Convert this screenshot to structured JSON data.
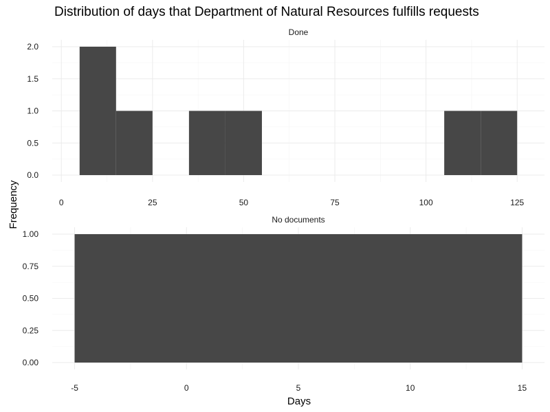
{
  "chart_data": {
    "type": "bar",
    "title": "Distribution of days that Department of Natural Resources fulfills requests",
    "xlabel": "Days",
    "ylabel": "Frequency",
    "grid": true,
    "bar_color": "#474747",
    "panels": [
      {
        "name": "Done",
        "xlim": [
          -2.5,
          132.5
        ],
        "ylim": [
          0,
          2.0
        ],
        "x_ticks": [
          0,
          25,
          50,
          75,
          100,
          125
        ],
        "y_ticks": [
          0.0,
          0.5,
          1.0,
          1.5,
          2.0
        ],
        "y_tick_labels": [
          "0.0",
          "0.5",
          "1.0",
          "1.5",
          "2.0"
        ],
        "bins": [
          {
            "x0": 5,
            "x1": 15,
            "count": 2
          },
          {
            "x0": 15,
            "x1": 25,
            "count": 1
          },
          {
            "x0": 35,
            "x1": 45,
            "count": 1
          },
          {
            "x0": 45,
            "x1": 55,
            "count": 1
          },
          {
            "x0": 105,
            "x1": 115,
            "count": 1
          },
          {
            "x0": 115,
            "x1": 125,
            "count": 1
          }
        ]
      },
      {
        "name": "No documents",
        "xlim": [
          -6,
          16
        ],
        "ylim": [
          0,
          1.0
        ],
        "x_ticks": [
          -5,
          0,
          5,
          10,
          15
        ],
        "y_ticks": [
          0.0,
          0.25,
          0.5,
          0.75,
          1.0
        ],
        "y_tick_labels": [
          "0.00",
          "0.25",
          "0.50",
          "0.75",
          "1.00"
        ],
        "bins": [
          {
            "x0": -5,
            "x1": 15,
            "count": 1
          }
        ]
      }
    ]
  }
}
